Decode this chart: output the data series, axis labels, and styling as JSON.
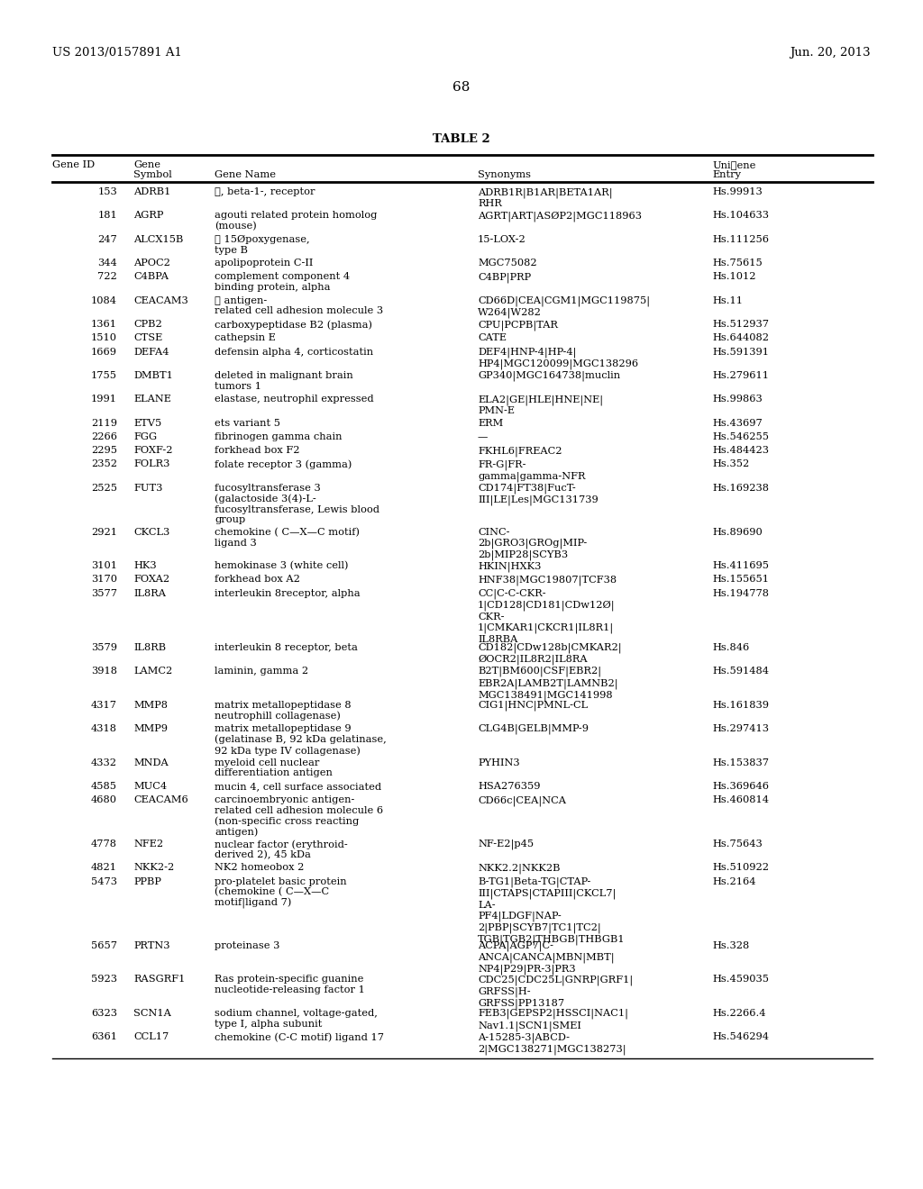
{
  "patent_left": "US 2013/0157891 A1",
  "patent_right": "Jun. 20, 2013",
  "page_number": "68",
  "table_title": "TABLE 2",
  "background_color": "#ffffff",
  "text_color": "#000000",
  "rows": [
    [
      "153",
      "ADRB1",
      "①, beta-1-, receptor",
      "ADRB1R|B1AR|BETA1AR|\nRHR",
      "Hs.99913"
    ],
    [
      "181",
      "AGRP",
      "agouti related protein homolog\n(mouse)",
      "AGRT|ART|ASØP2|MGC118963",
      "Hs.104633"
    ],
    [
      "247",
      "ALCX15B",
      "① 15Øpoxygenase,\ntype B",
      "15-LOX-2",
      "Hs.111256"
    ],
    [
      "344",
      "APOC2",
      "apolipoprotein C-II",
      "MGC75082",
      "Hs.75615"
    ],
    [
      "722",
      "C4BPA",
      "complement component 4\nbinding protein, alpha",
      "C4BP|PRP",
      "Hs.1012"
    ],
    [
      "1084",
      "CEACAM3",
      "① antigen-\nrelated cell adhesion molecule 3",
      "CD66D|CEA|CGM1|MGC119875|\nW264|W282",
      "Hs.11"
    ],
    [
      "1361",
      "CPB2",
      "carboxypeptidase B2 (plasma)",
      "CPU|PCPB|TAR",
      "Hs.512937"
    ],
    [
      "1510",
      "CTSE",
      "cathepsin E",
      "CATE",
      "Hs.644082"
    ],
    [
      "1669",
      "DEFA4",
      "defensin alpha 4, corticostatin",
      "DEF4|HNP-4|HP-4|\nHP4|MGC120099|MGC138296",
      "Hs.591391"
    ],
    [
      "1755",
      "DMBT1",
      "deleted in malignant brain\ntumors 1",
      "GP340|MGC164738|muclin",
      "Hs.279611"
    ],
    [
      "1991",
      "ELANE",
      "elastase, neutrophil expressed",
      "ELA2|GE|HLE|HNE|NE|\nPMN-E",
      "Hs.99863"
    ],
    [
      "2119",
      "ETV5",
      "ets variant 5",
      "ERM",
      "Hs.43697"
    ],
    [
      "2266",
      "FGG",
      "fibrinogen gamma chain",
      "—",
      "Hs.546255"
    ],
    [
      "2295",
      "FOXF-2",
      "forkhead box F2",
      "FKHL6|FREAC2",
      "Hs.484423"
    ],
    [
      "2352",
      "FOLR3",
      "folate receptor 3 (gamma)",
      "FR-G|FR-\ngamma|gamma-NFR",
      "Hs.352"
    ],
    [
      "2525",
      "FUT3",
      "fucosyltransferase 3\n(galactoside 3(4)-L-\nfucosyltransferase, Lewis blood\ngroup",
      "CD174|FT38|FucT-\nIII|LE|Les|MGC131739",
      "Hs.169238"
    ],
    [
      "2921",
      "CKCL3",
      "chemokine ( C—X—C motif)\nligand 3",
      "CINC-\n2b|GRO3|GROg|MIP-\n2b|MIP28|SCYB3",
      "Hs.89690"
    ],
    [
      "3101",
      "HK3",
      "hemokinase 3 (white cell)",
      "HKIN|HXK3",
      "Hs.411695"
    ],
    [
      "3170",
      "FOXA2",
      "forkhead box A2",
      "HNF38|MGC19807|TCF38",
      "Hs.155651"
    ],
    [
      "3577",
      "IL8RA",
      "interleukin 8receptor, alpha",
      "CC|C-C-CKR-\n1|CD128|CD181|CDw12Ø|\nCKR-\n1|CMKAR1|CKCR1|IL8R1|\nIL8RBA",
      "Hs.194778"
    ],
    [
      "3579",
      "IL8RB",
      "interleukin 8 receptor, beta",
      "CD182|CDw128b|CMKAR2|\nØOCR2|IL8R2|IL8RA",
      "Hs.846"
    ],
    [
      "3918",
      "LAMC2",
      "laminin, gamma 2",
      "B2T|BM600|CSF|EBR2|\nEBR2A|LAMB2T|LAMNB2|\nMGC138491|MGC141998",
      "Hs.591484"
    ],
    [
      "4317",
      "MMP8",
      "matrix metallopeptidase 8\nneutrophill collagenase)",
      "CIG1|HNC|PMNL-CL",
      "Hs.161839"
    ],
    [
      "4318",
      "MMP9",
      "matrix metallopeptidase 9\n(gelatinase B, 92 kDa gelatinase,\n92 kDa type IV collagenase)",
      "CLG4B|GELB|MMP-9",
      "Hs.297413"
    ],
    [
      "4332",
      "MNDA",
      "myeloid cell nuclear\ndifferentiation antigen",
      "PYHIN3",
      "Hs.153837"
    ],
    [
      "4585",
      "MUC4",
      "mucin 4, cell surface associated",
      "HSA276359",
      "Hs.369646"
    ],
    [
      "4680",
      "CEACAM6",
      "carcinoembryonic antigen-\nrelated cell adhesion molecule 6\n(non-specific cross reacting\nantigen)",
      "CD66c|CEA|NCA",
      "Hs.460814"
    ],
    [
      "4778",
      "NFE2",
      "nuclear factor (erythroid-\nderived 2), 45 kDa",
      "NF-E2|p45",
      "Hs.75643"
    ],
    [
      "4821",
      "NKK2-2",
      "NK2 homeobox 2",
      "NKK2.2|NKK2B",
      "Hs.510922"
    ],
    [
      "5473",
      "PPBP",
      "pro-platelet basic protein\n(chemokine ( C—X—C\nmotif|ligand 7)",
      "B-TG1|Beta-TG|CTAP-\nIII|CTAPS|CTAPIII|CKCL7|\nLA-\nPF4|LDGF|NAP-\n2|PBP|SCYB7|TC1|TC2|\nTGB|TGB2|THBGB|THBGB1",
      "Hs.2164"
    ],
    [
      "5657",
      "PRTN3",
      "proteinase 3",
      "ACPA|AGP7|C-\nANCA|CANCA|MBN|MBT|\nNP4|P29|PR-3|PR3",
      "Hs.328"
    ],
    [
      "5923",
      "RASGRF1",
      "Ras protein-specific guanine\nnucleotide-releasing factor 1",
      "CDC25|CDC25L|GNRP|GRF1|\nGRFSS|H-\nGRFSS|PP13187",
      "Hs.459035"
    ],
    [
      "6323",
      "SCN1A",
      "sodium channel, voltage-gated,\ntype I, alpha subunit",
      "FEB3|GEPSP2|HSSCI|NAC1|\nNav1.1|SCN1|SMEI",
      "Hs.2266.4"
    ],
    [
      "6361",
      "CCL17",
      "chemokine (C-C motif) ligand 17",
      "A-15285-3|ABCD-\n2|MGC138271|MGC138273|",
      "Hs.546294"
    ]
  ]
}
